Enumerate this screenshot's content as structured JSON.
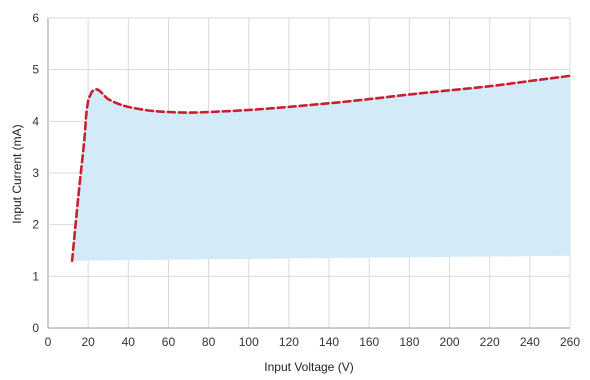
{
  "chart_data": {
    "type": "area",
    "xlabel": "Input Voltage (V)",
    "ylabel": "Input Current (mA)",
    "xlim": [
      0,
      260
    ],
    "ylim": [
      0,
      6
    ],
    "x_ticks": [
      0,
      20,
      40,
      60,
      80,
      100,
      120,
      140,
      160,
      180,
      200,
      220,
      240,
      260
    ],
    "y_ticks": [
      0,
      1,
      2,
      3,
      4,
      5,
      6
    ],
    "grid": true,
    "legend": "none",
    "series": [
      {
        "style": "dashed-line",
        "color": "#c8202f",
        "points": [
          [
            12,
            1.3
          ],
          [
            15,
            2.5
          ],
          [
            18,
            3.6
          ],
          [
            19,
            4.1
          ],
          [
            20,
            4.4
          ],
          [
            21,
            4.5
          ],
          [
            22,
            4.58
          ],
          [
            24,
            4.62
          ],
          [
            26,
            4.58
          ],
          [
            28,
            4.5
          ],
          [
            30,
            4.43
          ],
          [
            35,
            4.34
          ],
          [
            40,
            4.28
          ],
          [
            50,
            4.21
          ],
          [
            60,
            4.18
          ],
          [
            70,
            4.17
          ],
          [
            80,
            4.18
          ],
          [
            100,
            4.22
          ],
          [
            120,
            4.28
          ],
          [
            140,
            4.35
          ],
          [
            160,
            4.43
          ],
          [
            180,
            4.52
          ],
          [
            200,
            4.6
          ],
          [
            220,
            4.68
          ],
          [
            240,
            4.78
          ],
          [
            260,
            4.88
          ]
        ]
      },
      {
        "style": "filled-region",
        "color": "#d3ebf8",
        "upper_points": [
          [
            12,
            1.3
          ],
          [
            15,
            2.5
          ],
          [
            18,
            3.6
          ],
          [
            19,
            4.1
          ],
          [
            20,
            4.4
          ],
          [
            21,
            4.5
          ],
          [
            22,
            4.58
          ],
          [
            24,
            4.62
          ],
          [
            26,
            4.58
          ],
          [
            28,
            4.5
          ],
          [
            30,
            4.43
          ],
          [
            35,
            4.34
          ],
          [
            40,
            4.28
          ],
          [
            50,
            4.21
          ],
          [
            60,
            4.18
          ],
          [
            70,
            4.17
          ],
          [
            80,
            4.18
          ],
          [
            100,
            4.22
          ],
          [
            120,
            4.28
          ],
          [
            140,
            4.35
          ],
          [
            160,
            4.43
          ],
          [
            180,
            4.52
          ],
          [
            200,
            4.6
          ],
          [
            220,
            4.68
          ],
          [
            240,
            4.78
          ],
          [
            260,
            4.88
          ]
        ],
        "lower_points": [
          [
            12,
            1.3
          ],
          [
            260,
            1.4
          ]
        ]
      }
    ]
  }
}
